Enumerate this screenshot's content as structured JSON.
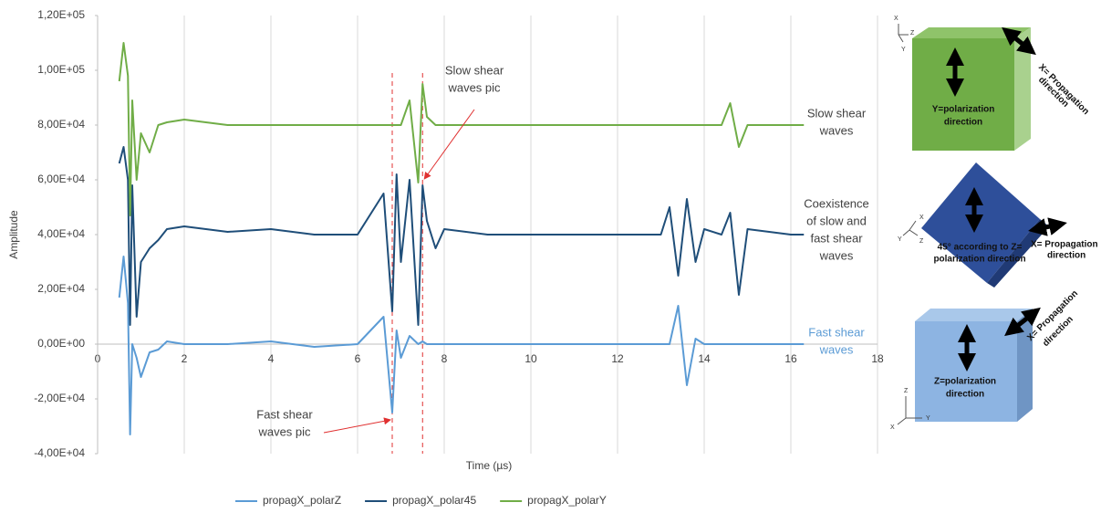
{
  "chart_data": {
    "type": "line",
    "x_label": "Time (µs)",
    "y_label": "Amplitude",
    "x": [
      0.5,
      0.6,
      0.7,
      0.75,
      0.8,
      0.9,
      1.0,
      1.2,
      1.4,
      1.6,
      2,
      3,
      4,
      5,
      6,
      6.6,
      6.8,
      6.9,
      7.0,
      7.2,
      7.4,
      7.5,
      7.6,
      7.8,
      8,
      9,
      10,
      11,
      12,
      13,
      13.2,
      13.4,
      13.6,
      13.8,
      14,
      14.4,
      14.6,
      14.8,
      15,
      16,
      16.3
    ],
    "series": [
      {
        "name": "propagX_polarZ",
        "color": "#5b9bd5",
        "values": [
          17000,
          32000,
          15000,
          -33000,
          0,
          -5000,
          -12000,
          -3000,
          -2000,
          1000,
          0,
          0,
          1000,
          -1000,
          0,
          10000,
          -25000,
          5000,
          -5000,
          3000,
          0,
          1000,
          0,
          0,
          0,
          0,
          0,
          0,
          0,
          0,
          0,
          14000,
          -15000,
          2000,
          0,
          0,
          0,
          0,
          0,
          0,
          0
        ]
      },
      {
        "name": "propagX_polar45",
        "color": "#1f4e79",
        "values": [
          66000,
          72000,
          60000,
          7000,
          58000,
          10000,
          30000,
          35000,
          38000,
          42000,
          43000,
          41000,
          42000,
          40000,
          40000,
          55000,
          12000,
          62000,
          30000,
          60000,
          7000,
          58000,
          45000,
          35000,
          42000,
          40000,
          40000,
          40000,
          40000,
          40000,
          50000,
          25000,
          53000,
          30000,
          42000,
          40000,
          48000,
          18000,
          42000,
          40000,
          40000
        ]
      },
      {
        "name": "propagX_polarY",
        "color": "#70ad47",
        "values": [
          96000,
          110000,
          98000,
          47000,
          89000,
          60000,
          77000,
          70000,
          80000,
          81000,
          82000,
          80000,
          80000,
          80000,
          80000,
          80000,
          80000,
          80000,
          80000,
          89000,
          59000,
          95000,
          83000,
          80000,
          80000,
          80000,
          80000,
          80000,
          80000,
          80000,
          80000,
          80000,
          80000,
          80000,
          80000,
          80000,
          88000,
          72000,
          80000,
          80000,
          80000
        ]
      }
    ],
    "xlim": [
      0,
      18
    ],
    "xticks": [
      0,
      2,
      4,
      6,
      8,
      10,
      12,
      14,
      16,
      18
    ],
    "ylim": [
      -40000,
      120000
    ],
    "yticks": [
      {
        "value": -40000,
        "label": "-4,00E+04"
      },
      {
        "value": -20000,
        "label": "-2,00E+04"
      },
      {
        "value": 0,
        "label": "0,00E+00"
      },
      {
        "value": 20000,
        "label": "2,00E+04"
      },
      {
        "value": 40000,
        "label": "4,00E+04"
      },
      {
        "value": 60000,
        "label": "6,00E+04"
      },
      {
        "value": 80000,
        "label": "8,00E+04"
      },
      {
        "value": 100000,
        "label": "1,00E+05"
      },
      {
        "value": 120000,
        "label": "1,20E+05"
      }
    ],
    "grid": "x",
    "legend": "bottom",
    "markers": [
      6.8,
      7.5
    ],
    "marker_color": "#e03030",
    "annotations": [
      {
        "lines": [
          "Fast shear",
          "waves pic"
        ]
      },
      {
        "lines": [
          "Slow shear",
          "waves pic"
        ]
      },
      {
        "lines": [
          "Slow shear",
          "waves"
        ],
        "color": "#404040"
      },
      {
        "lines": [
          "Coexistence",
          "of slow and",
          "fast shear",
          "waves"
        ],
        "color": "#404040"
      },
      {
        "lines": [
          "Fast shear",
          "waves"
        ],
        "color": "#5b9bd5"
      }
    ]
  },
  "diagrams": {
    "axes": [
      "X",
      "Z",
      "Y"
    ],
    "top": {
      "polarization": [
        "Y=polarization",
        "direction"
      ],
      "propagation": [
        "X= Propagation",
        "direction"
      ]
    },
    "middle": {
      "polarization": [
        "45° according to Z=",
        "polarization direction"
      ],
      "propagation": [
        "X= Propagation",
        "direction"
      ]
    },
    "bottom": {
      "polarization": [
        "Z=polarization",
        "direction"
      ],
      "propagation": [
        "X= Propagation",
        "direction"
      ]
    }
  }
}
